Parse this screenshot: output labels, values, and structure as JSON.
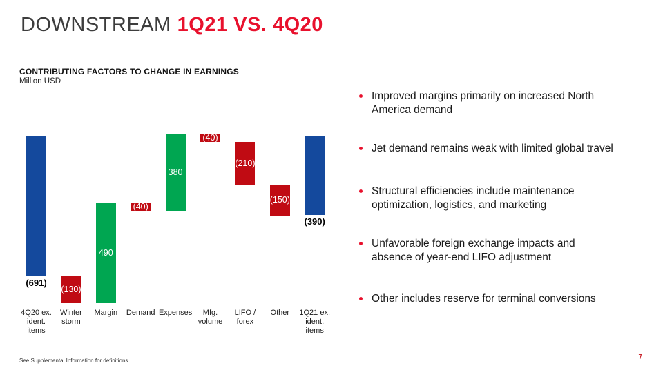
{
  "header": {
    "title_prefix": "DOWNSTREAM",
    "title_highlight": "1Q21 VS. 4Q20"
  },
  "colors": {
    "accent_red": "#e8112d",
    "bar_red": "#c00b13",
    "bar_green": "#00a651",
    "bar_blue": "#14499d",
    "title_gray": "#3d3d3d"
  },
  "chart_data": {
    "type": "bar",
    "subtype": "waterfall",
    "title": "CONTRIBUTING FACTORS TO CHANGE IN EARNINGS",
    "ylabel": "Million USD",
    "xlabel": "",
    "legend": "none",
    "gridlines": false,
    "zero_line": true,
    "categories": [
      "4Q20 ex. ident. items",
      "Winter storm",
      "Margin",
      "Demand",
      "Expenses",
      "Mfg. volume",
      "LIFO / forex",
      "Other",
      "1Q21 ex. ident. items"
    ],
    "values": [
      -691,
      -130,
      490,
      -40,
      380,
      -40,
      -210,
      -150,
      -390
    ],
    "bars": [
      {
        "category_lines": [
          "4Q20 ex.",
          "ident.",
          "items"
        ],
        "value": -691,
        "display": "(691)",
        "kind": "total",
        "color": "blue",
        "label_pos": "below"
      },
      {
        "category_lines": [
          "Winter",
          "storm"
        ],
        "value": -130,
        "display": "(130)",
        "kind": "delta",
        "color": "red",
        "label_pos": "inside"
      },
      {
        "category_lines": [
          "Margin"
        ],
        "value": 490,
        "display": "490",
        "kind": "delta",
        "color": "green",
        "label_pos": "inside"
      },
      {
        "category_lines": [
          "Demand"
        ],
        "value": -40,
        "display": "(40)",
        "kind": "delta",
        "color": "red",
        "label_pos": "inside"
      },
      {
        "category_lines": [
          "Expenses"
        ],
        "value": 380,
        "display": "380",
        "kind": "delta",
        "color": "green",
        "label_pos": "inside"
      },
      {
        "category_lines": [
          "Mfg.",
          "volume"
        ],
        "value": -40,
        "display": "(40)",
        "kind": "delta",
        "color": "red",
        "label_pos": "inside"
      },
      {
        "category_lines": [
          "LIFO /",
          "forex"
        ],
        "value": -210,
        "display": "(210)",
        "kind": "delta",
        "color": "red",
        "label_pos": "inside"
      },
      {
        "category_lines": [
          "Other"
        ],
        "value": -150,
        "display": "(150)",
        "kind": "delta",
        "color": "red",
        "label_pos": "inside"
      },
      {
        "category_lines": [
          "1Q21 ex.",
          "ident.",
          "items"
        ],
        "value": -390,
        "display": "(390)",
        "kind": "total",
        "color": "blue",
        "label_pos": "below"
      }
    ]
  },
  "bullets": [
    {
      "lines": [
        "Improved margins primarily on increased North",
        "America demand"
      ]
    },
    {
      "lines": [
        "Jet demand remains weak with limited global travel"
      ]
    },
    {
      "lines": [
        "Structural efficiencies include maintenance",
        "optimization, logistics, and marketing"
      ]
    },
    {
      "lines": [
        "Unfavorable foreign exchange impacts and",
        "absence of year-end LIFO adjustment"
      ]
    },
    {
      "lines": [
        "Other includes reserve for terminal conversions"
      ]
    }
  ],
  "footer": {
    "note": "See Supplemental Information for definitions.",
    "page_number": "7"
  }
}
